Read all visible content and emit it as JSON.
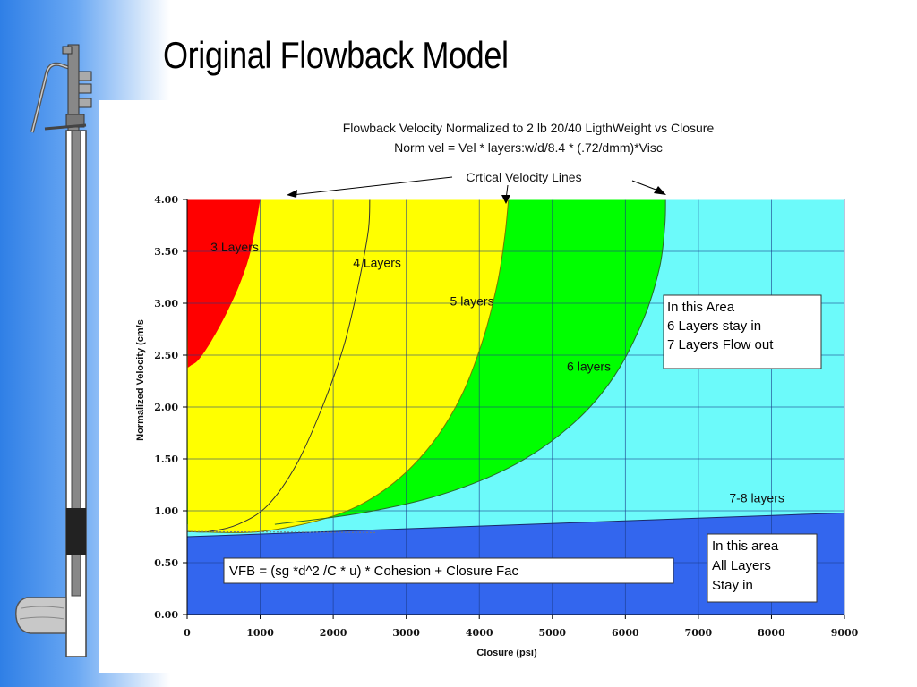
{
  "slide": {
    "title": "Original Flowback Model"
  },
  "chart_data": {
    "type": "area",
    "title": "Flowback Velocity Normalized to 2 lb 20/40 LigthWeight vs Closure",
    "subtitle": "Norm vel = Vel * layers:w/d/8.4 * (.72/dmm)*Visc",
    "xlabel": "Closure (psi)",
    "ylabel": "Normalized Velocity (cm/s",
    "xlim": [
      0,
      9000
    ],
    "ylim": [
      0,
      4
    ],
    "x_ticks": [
      0,
      1000,
      2000,
      3000,
      4000,
      5000,
      6000,
      7000,
      8000,
      9000
    ],
    "x_tick_labels": [
      "0",
      "1000",
      "2000",
      "3000",
      "4000",
      "5000",
      "6000",
      "7000",
      "8000",
      "9000"
    ],
    "y_ticks": [
      0,
      0.5,
      1,
      1.5,
      2,
      2.5,
      3,
      3.5,
      4
    ],
    "y_tick_labels": [
      "0.00",
      "0.50",
      "1.00",
      "1.50",
      "2.00",
      "2.50",
      "3.00",
      "3.50",
      "4.00"
    ],
    "grid": true,
    "background_color": "#6cfafa",
    "series": [
      {
        "name": "3 Layers",
        "color": "#ff0000",
        "x": [
          10,
          50,
          150,
          300,
          500,
          700,
          850,
          940,
          1000
        ],
        "y": [
          2.38,
          2.4,
          2.45,
          2.6,
          2.85,
          3.15,
          3.45,
          3.75,
          4.0
        ]
      },
      {
        "name": "4 Layers",
        "color": "#ffff00",
        "x": [
          10,
          300,
          700,
          1100,
          1500,
          1850,
          2150,
          2350,
          2480,
          2500
        ],
        "y": [
          0.8,
          0.8,
          0.87,
          1.05,
          1.45,
          2.0,
          2.6,
          3.2,
          3.7,
          4.0
        ]
      },
      {
        "name": "5 layers",
        "color": "#ffff00",
        "x": [
          10,
          1000,
          2000,
          2700,
          3300,
          3750,
          4050,
          4250,
          4350,
          4400
        ],
        "y": [
          0.8,
          0.8,
          0.95,
          1.2,
          1.6,
          2.1,
          2.65,
          3.2,
          3.65,
          4.0
        ]
      },
      {
        "name": "6 layers",
        "color": "#00ff00",
        "x": [
          1200,
          2400,
          3500,
          4500,
          5300,
          5850,
          6250,
          6470,
          6540,
          6550
        ],
        "y": [
          0.87,
          0.98,
          1.16,
          1.45,
          1.85,
          2.3,
          2.85,
          3.35,
          3.75,
          4.0
        ]
      },
      {
        "name": "7-8 layers",
        "color": "#3366ee",
        "x": [
          0,
          9000
        ],
        "y": [
          0.75,
          0.98
        ]
      }
    ],
    "annotations": [
      {
        "text": "Crtical Velocity Lines",
        "x": 4500,
        "y": 4.22
      },
      {
        "text": "3 Layers",
        "x": 650,
        "y": 3.5
      },
      {
        "text": "4 Layers",
        "x": 2600,
        "y": 3.35
      },
      {
        "text": "5 layers",
        "x": 3900,
        "y": 2.98
      },
      {
        "text": "6 layers",
        "x": 5500,
        "y": 2.35
      },
      {
        "text": "7-8 layers",
        "x": 7800,
        "y": 1.08
      }
    ]
  },
  "boxes": {
    "upper_lines": [
      "In this Area",
      "6 Layers stay in",
      "7 Layers Flow out"
    ],
    "lower_lines": [
      "In this area",
      "All Layers",
      "Stay in"
    ],
    "formula": "VFB =   (sg *d^2 /C * u) * Cohesion + Closure Fac"
  },
  "colors": {
    "red_region": "#ff0000",
    "yellow_region": "#ffff00",
    "green_region": "#00ff00",
    "cyan_region": "#6cfafa",
    "blue_region": "#3366ee"
  }
}
